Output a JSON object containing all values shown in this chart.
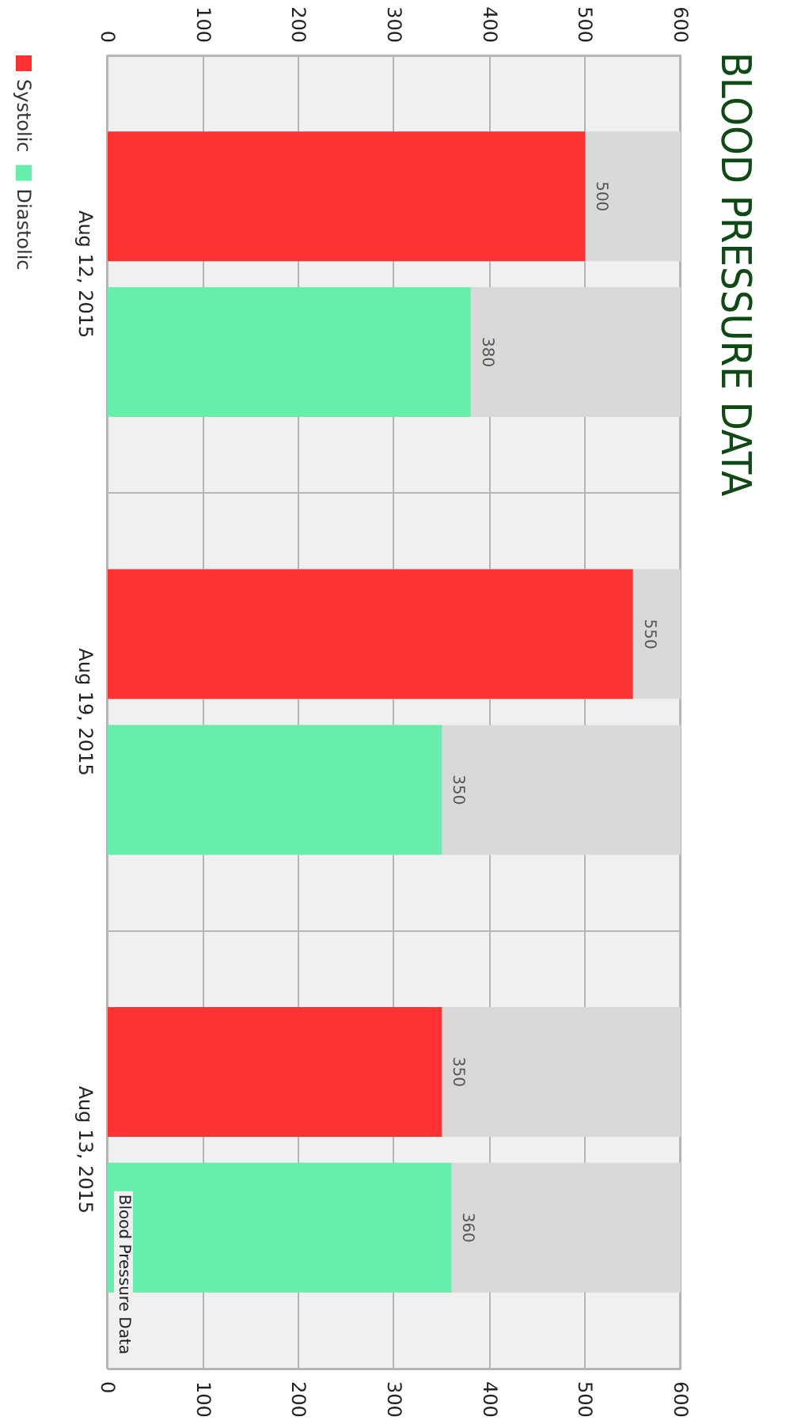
{
  "chart_data": {
    "type": "bar",
    "title": "BLOOD PRESSURE DATA",
    "orientation": "horizontal",
    "categories": [
      "Aug 12, 2015",
      "Aug 19, 2015",
      "Aug 13, 2015"
    ],
    "series": [
      {
        "name": "Systolic",
        "color": "#ff3333",
        "values": [
          500,
          550,
          350
        ]
      },
      {
        "name": "Diastolic",
        "color": "#66eeaa",
        "values": [
          380,
          350,
          360
        ]
      }
    ],
    "xlim": [
      0,
      600
    ],
    "xticks": [
      0,
      100,
      200,
      300,
      400,
      500,
      600
    ],
    "x2lim": [
      0,
      600
    ],
    "x2ticks": [
      0,
      100,
      200,
      300,
      400,
      500,
      600
    ],
    "data_labels": true,
    "grid": true,
    "legend": "left",
    "annotations": [
      "Blood Pressure Data"
    ]
  }
}
